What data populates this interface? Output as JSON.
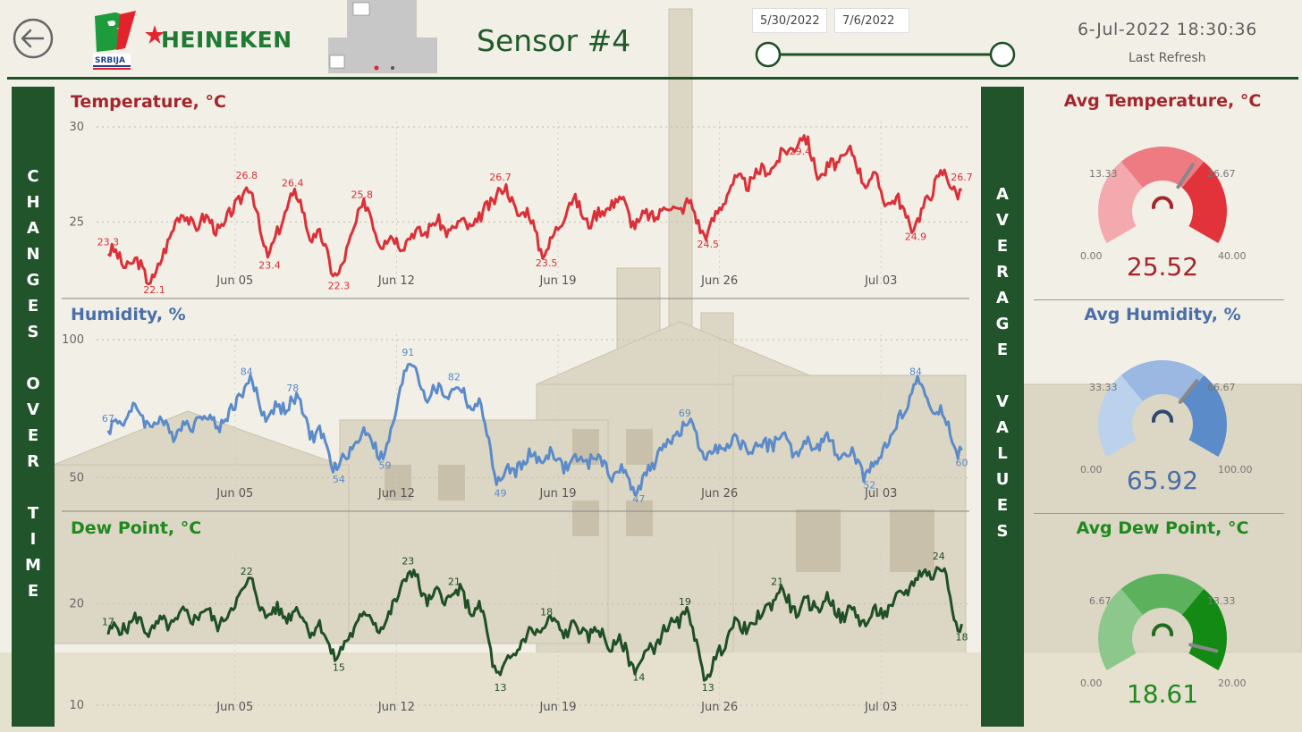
{
  "header": {
    "back_icon": "arrow-left-circle-icon",
    "logo_bl_text": "SRBIJA",
    "logo_brand": "HEINEKEN",
    "sensor_title": "Sensor #4",
    "date_start": "5/30/2022",
    "date_end": "7/6/2022",
    "datetime": "6-Jul-2022 18:30:36",
    "last_refresh": "Last Refresh"
  },
  "sidebars": {
    "left_label": "CHANGES OVER TIME",
    "right_label": "AVERAGE VALUES"
  },
  "colors": {
    "temperature": "#dc3038",
    "humidity": "#5b8bc9",
    "dewpoint": "#1f4f25",
    "temperature_title": "#a4262c",
    "humidity_title": "#4a6fa8",
    "dewpoint_title": "#1e8a1e",
    "bar": "#21542b"
  },
  "x_ticks": [
    "Jun 05",
    "Jun 12",
    "Jun 19",
    "Jun 26",
    "Jul 03"
  ],
  "chart_data": [
    {
      "type": "line",
      "title": "Temperature, °C",
      "ylim": [
        22,
        30
      ],
      "yticks": [
        25,
        30
      ],
      "color": "#dc3038",
      "x": [
        "2022-05-30",
        "2022-05-31",
        "2022-06-01",
        "2022-06-02",
        "2022-06-03",
        "2022-06-04",
        "2022-06-05",
        "2022-06-06",
        "2022-06-07",
        "2022-06-08",
        "2022-06-09",
        "2022-06-10",
        "2022-06-11",
        "2022-06-12",
        "2022-06-13",
        "2022-06-14",
        "2022-06-15",
        "2022-06-16",
        "2022-06-17",
        "2022-06-18",
        "2022-06-19",
        "2022-06-20",
        "2022-06-21",
        "2022-06-22",
        "2022-06-23",
        "2022-06-24",
        "2022-06-25",
        "2022-06-26",
        "2022-06-27",
        "2022-06-28",
        "2022-06-29",
        "2022-06-30",
        "2022-07-01",
        "2022-07-02",
        "2022-07-03",
        "2022-07-04",
        "2022-07-05",
        "2022-07-06"
      ],
      "values": [
        23.3,
        22.8,
        22.1,
        25.2,
        25.0,
        24.8,
        26.8,
        23.4,
        26.4,
        24.2,
        22.3,
        25.8,
        24.0,
        24.1,
        24.8,
        24.7,
        25.0,
        26.7,
        25.5,
        23.5,
        26.0,
        25.1,
        26.2,
        25.0,
        25.6,
        25.9,
        24.5,
        26.9,
        27.3,
        28.2,
        29.4,
        27.5,
        28.6,
        27.2,
        26.1,
        24.9,
        27.4,
        26.7
      ],
      "labels": [
        {
          "i": 0,
          "text": "23.3",
          "pos": "above"
        },
        {
          "i": 2,
          "text": "22.1",
          "pos": "below"
        },
        {
          "i": 6,
          "text": "26.8",
          "pos": "above"
        },
        {
          "i": 7,
          "text": "23.4",
          "pos": "below"
        },
        {
          "i": 8,
          "text": "26.4",
          "pos": "above"
        },
        {
          "i": 10,
          "text": "22.3",
          "pos": "below"
        },
        {
          "i": 11,
          "text": "25.8",
          "pos": "above"
        },
        {
          "i": 17,
          "text": "26.7",
          "pos": "above"
        },
        {
          "i": 19,
          "text": "23.5",
          "pos": "below"
        },
        {
          "i": 26,
          "text": "24.5",
          "pos": "below"
        },
        {
          "i": 30,
          "text": "29.4",
          "pos": "below"
        },
        {
          "i": 35,
          "text": "24.9",
          "pos": "below"
        },
        {
          "i": 37,
          "text": "26.7",
          "pos": "above"
        }
      ]
    },
    {
      "type": "line",
      "title": "Humidity, %",
      "ylim": [
        45,
        100
      ],
      "yticks": [
        50,
        100
      ],
      "color": "#5b8bc9",
      "x": [
        "2022-05-30",
        "2022-05-31",
        "2022-06-01",
        "2022-06-02",
        "2022-06-03",
        "2022-06-04",
        "2022-06-05",
        "2022-06-06",
        "2022-06-07",
        "2022-06-08",
        "2022-06-09",
        "2022-06-10",
        "2022-06-11",
        "2022-06-12",
        "2022-06-13",
        "2022-06-14",
        "2022-06-15",
        "2022-06-16",
        "2022-06-17",
        "2022-06-18",
        "2022-06-19",
        "2022-06-20",
        "2022-06-21",
        "2022-06-22",
        "2022-06-23",
        "2022-06-24",
        "2022-06-25",
        "2022-06-26",
        "2022-06-27",
        "2022-06-28",
        "2022-06-29",
        "2022-06-30",
        "2022-07-01",
        "2022-07-02",
        "2022-07-03",
        "2022-07-04",
        "2022-07-05",
        "2022-07-06"
      ],
      "values": [
        67,
        74,
        70,
        67,
        72,
        70,
        84,
        73,
        78,
        66,
        54,
        66,
        59,
        91,
        80,
        82,
        76,
        49,
        56,
        58,
        55,
        57,
        52,
        47,
        60,
        69,
        59,
        62,
        61,
        64,
        60,
        63,
        58,
        52,
        66,
        84,
        73,
        60
      ],
      "labels": [
        {
          "i": 0,
          "text": "67",
          "pos": "above"
        },
        {
          "i": 6,
          "text": "84",
          "pos": "above"
        },
        {
          "i": 8,
          "text": "78",
          "pos": "above"
        },
        {
          "i": 10,
          "text": "54",
          "pos": "below"
        },
        {
          "i": 12,
          "text": "59",
          "pos": "below"
        },
        {
          "i": 13,
          "text": "91",
          "pos": "above"
        },
        {
          "i": 15,
          "text": "82",
          "pos": "above"
        },
        {
          "i": 17,
          "text": "49",
          "pos": "below"
        },
        {
          "i": 23,
          "text": "47",
          "pos": "below"
        },
        {
          "i": 25,
          "text": "69",
          "pos": "above"
        },
        {
          "i": 33,
          "text": "52",
          "pos": "below"
        },
        {
          "i": 35,
          "text": "84",
          "pos": "above"
        },
        {
          "i": 37,
          "text": "60",
          "pos": "below"
        }
      ]
    },
    {
      "type": "line",
      "title": "Dew Point, °C",
      "ylim": [
        10,
        25
      ],
      "yticks": [
        10,
        20
      ],
      "color": "#1f4f25",
      "x": [
        "2022-05-30",
        "2022-05-31",
        "2022-06-01",
        "2022-06-02",
        "2022-06-03",
        "2022-06-04",
        "2022-06-05",
        "2022-06-06",
        "2022-06-07",
        "2022-06-08",
        "2022-06-09",
        "2022-06-10",
        "2022-06-11",
        "2022-06-12",
        "2022-06-13",
        "2022-06-14",
        "2022-06-15",
        "2022-06-16",
        "2022-06-17",
        "2022-06-18",
        "2022-06-19",
        "2022-06-20",
        "2022-06-21",
        "2022-06-22",
        "2022-06-23",
        "2022-06-24",
        "2022-06-25",
        "2022-06-26",
        "2022-06-27",
        "2022-06-28",
        "2022-06-29",
        "2022-06-30",
        "2022-07-01",
        "2022-07-02",
        "2022-07-03",
        "2022-07-04",
        "2022-07-05",
        "2022-07-06"
      ],
      "values": [
        17,
        18.2,
        17.6,
        18.5,
        19.1,
        18.3,
        22,
        19,
        19.2,
        17.6,
        15,
        18.8,
        18,
        23,
        20.5,
        21,
        19.5,
        13,
        16.5,
        18,
        17.5,
        17.2,
        16,
        14,
        17,
        19,
        13,
        17.5,
        18,
        21,
        19.5,
        20.2,
        19,
        18.5,
        19.8,
        22.5,
        23.5,
        18
      ],
      "labels": [
        {
          "i": 0,
          "text": "17",
          "pos": "above"
        },
        {
          "i": 6,
          "text": "22",
          "pos": "above"
        },
        {
          "i": 10,
          "text": "15",
          "pos": "below"
        },
        {
          "i": 13,
          "text": "23",
          "pos": "above"
        },
        {
          "i": 15,
          "text": "21",
          "pos": "above"
        },
        {
          "i": 17,
          "text": "13",
          "pos": "below"
        },
        {
          "i": 19,
          "text": "18",
          "pos": "above"
        },
        {
          "i": 23,
          "text": "14",
          "pos": "below"
        },
        {
          "i": 25,
          "text": "19",
          "pos": "above"
        },
        {
          "i": 26,
          "text": "13",
          "pos": "below"
        },
        {
          "i": 29,
          "text": "21",
          "pos": "above"
        },
        {
          "i": 36,
          "text": "24",
          "pos": "above"
        },
        {
          "i": 37,
          "text": "18",
          "pos": "below"
        }
      ]
    },
    {
      "type": "gauge",
      "title": "Avg Temperature, °C",
      "value": 25.52,
      "value_text": "25.52",
      "min": 0,
      "max": 40,
      "ticks": [
        "0.00",
        "13.33",
        "26.67",
        "40.00"
      ],
      "band_colors": [
        "#f4a9ae",
        "#ef7b82",
        "#e2323a"
      ],
      "needle_color": "#888888",
      "center_color": "#a4262c",
      "title_color": "#a4262c",
      "value_color": "#a4262c"
    },
    {
      "type": "gauge",
      "title": "Avg Humidity, %",
      "value": 65.92,
      "value_text": "65.92",
      "min": 0,
      "max": 100,
      "ticks": [
        "0.00",
        "33.33",
        "66.67",
        "100.00"
      ],
      "band_colors": [
        "#bcd1ec",
        "#9ab8e2",
        "#5b8bc9"
      ],
      "needle_color": "#888888",
      "center_color": "#2e4a6e",
      "title_color": "#4a6fa8",
      "value_color": "#4a6fa8"
    },
    {
      "type": "gauge",
      "title": "Avg Dew Point, °C",
      "value": 18.61,
      "value_text": "18.61",
      "min": 0,
      "max": 20,
      "ticks": [
        "0.00",
        "6.67",
        "13.33",
        "20.00"
      ],
      "band_colors": [
        "#8cc88c",
        "#5cb15c",
        "#138a13"
      ],
      "needle_color": "#888888",
      "center_color": "#1e6a1e",
      "title_color": "#1e8a1e",
      "value_color": "#1e8a1e"
    }
  ]
}
